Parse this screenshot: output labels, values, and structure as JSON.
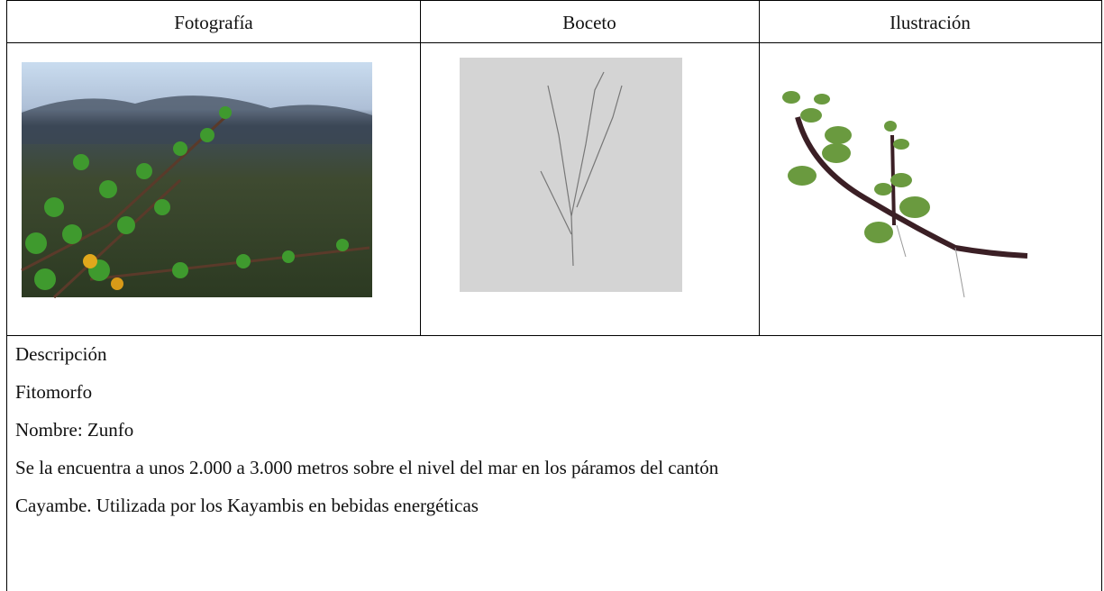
{
  "table": {
    "headers": [
      "Fotografía",
      "Boceto",
      "Ilustración"
    ],
    "description": {
      "heading": "Descripción",
      "type": "Fitomorfo",
      "name": "Nombre: Zunfo",
      "lines": [
        "Se la encuentra a unos 2.000 a 3.000 metros sobre el nivel del mar en los páramos del cantón",
        "Cayambe. Utilizada por los Kayambis en bebidas energéticas"
      ]
    }
  }
}
